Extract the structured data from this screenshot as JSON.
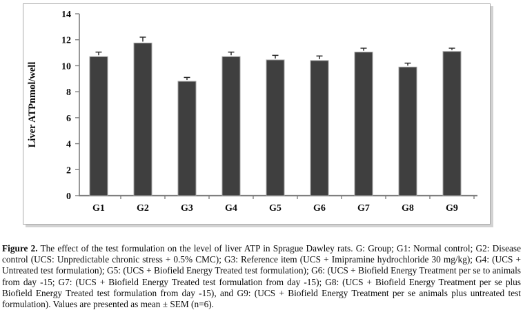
{
  "figure": {
    "caption_label": "Figure 2.",
    "caption_text": " The effect of the test formulation on the level of liver ATP in Sprague Dawley rats. G: Group; G1: Normal control; G2: Disease control (UCS: Unpredictable chronic stress + 0.5% CMC); G3: Reference item (UCS + Imipramine hydrochloride 30 mg/kg); G4: (UCS + Untreated test formulation); G5: (UCS + Biofield Energy Treated test formulation); G6: (UCS + Biofield Energy Treatment per se to animals from day -15; G7: (UCS + Biofield Energy Treated test formulation from day -15); G8: (UCS + Biofield Energy Treatment per se plus Biofield Energy Treated test formulation from day -15), and G9: (UCS + Biofield Energy Treatment per se animals plus untreated test formulation). Values are presented as mean ± SEM (n=6)."
  },
  "chart_data": {
    "type": "bar",
    "title": "",
    "xlabel": "",
    "ylabel": "Liver ATPnmol/well",
    "categories": [
      "G1",
      "G2",
      "G3",
      "G4",
      "G5",
      "G6",
      "G7",
      "G8",
      "G9"
    ],
    "values": [
      10.7,
      11.75,
      8.8,
      10.7,
      10.45,
      10.4,
      11.05,
      9.9,
      11.1
    ],
    "errors": [
      0.35,
      0.45,
      0.3,
      0.35,
      0.35,
      0.35,
      0.3,
      0.3,
      0.25
    ],
    "error_direction": "plus",
    "ylim": [
      0,
      14
    ],
    "ytick_step": 2,
    "grid": false,
    "legend": "none",
    "bar_color": "#3f3f3f",
    "bar_border_color": "#a6a6a6",
    "error_color": "#2b2b2b",
    "axis_color": "#7f7f7f",
    "tick_label_color": "#0a0a0a"
  }
}
